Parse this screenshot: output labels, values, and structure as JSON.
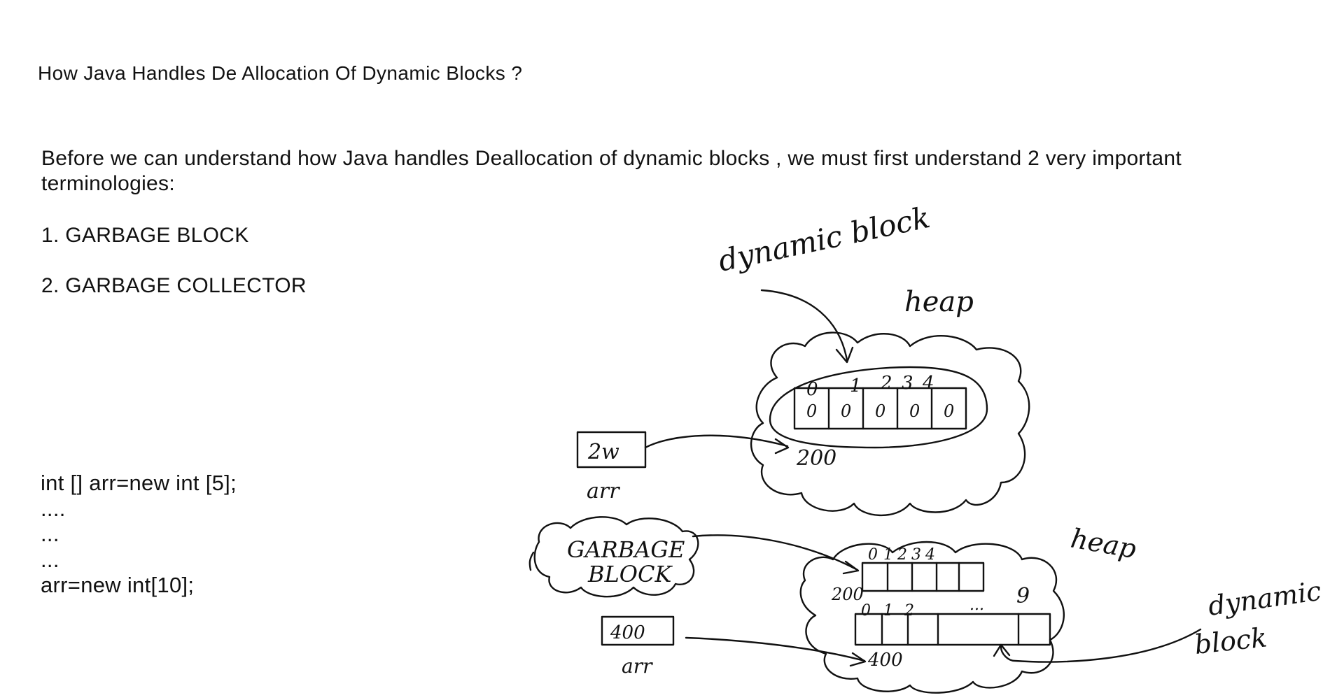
{
  "page": {
    "title": "How Java Handles De Allocation Of Dynamic Blocks ?",
    "intro": "Before we can understand how Java handles Deallocation of dynamic blocks , we must first understand 2 very important terminologies:",
    "terms": [
      "1. GARBAGE BLOCK",
      "2. GARBAGE COLLECTOR"
    ],
    "code_lines": [
      "int [] arr=new int [5];",
      "....",
      "...",
      "...",
      "arr=new int[10];"
    ]
  },
  "sketch": {
    "top_diagram": {
      "dynamic_block_label": "dynamic block",
      "heap_label": "heap",
      "indices": [
        "0",
        "1",
        "2",
        "3",
        "4"
      ],
      "cells": [
        "0",
        "0",
        "0",
        "0",
        "0"
      ],
      "block_address": "200",
      "ref_box_value": "2w",
      "ref_box_label": "arr"
    },
    "bottom_diagram": {
      "garbage_label_line1": "GARBAGE",
      "garbage_label_line2": "BLOCK",
      "heap_label": "heap",
      "small_indices": [
        "0",
        "1",
        "2",
        "3",
        "4"
      ],
      "small_address": "200",
      "big_indices": [
        "0",
        "1",
        "2",
        "...",
        "9"
      ],
      "big_address": "400",
      "ref_box_value": "400",
      "ref_box_label": "arr",
      "dynamic_label_line1": "dynamic",
      "dynamic_label_line2": "block"
    }
  }
}
